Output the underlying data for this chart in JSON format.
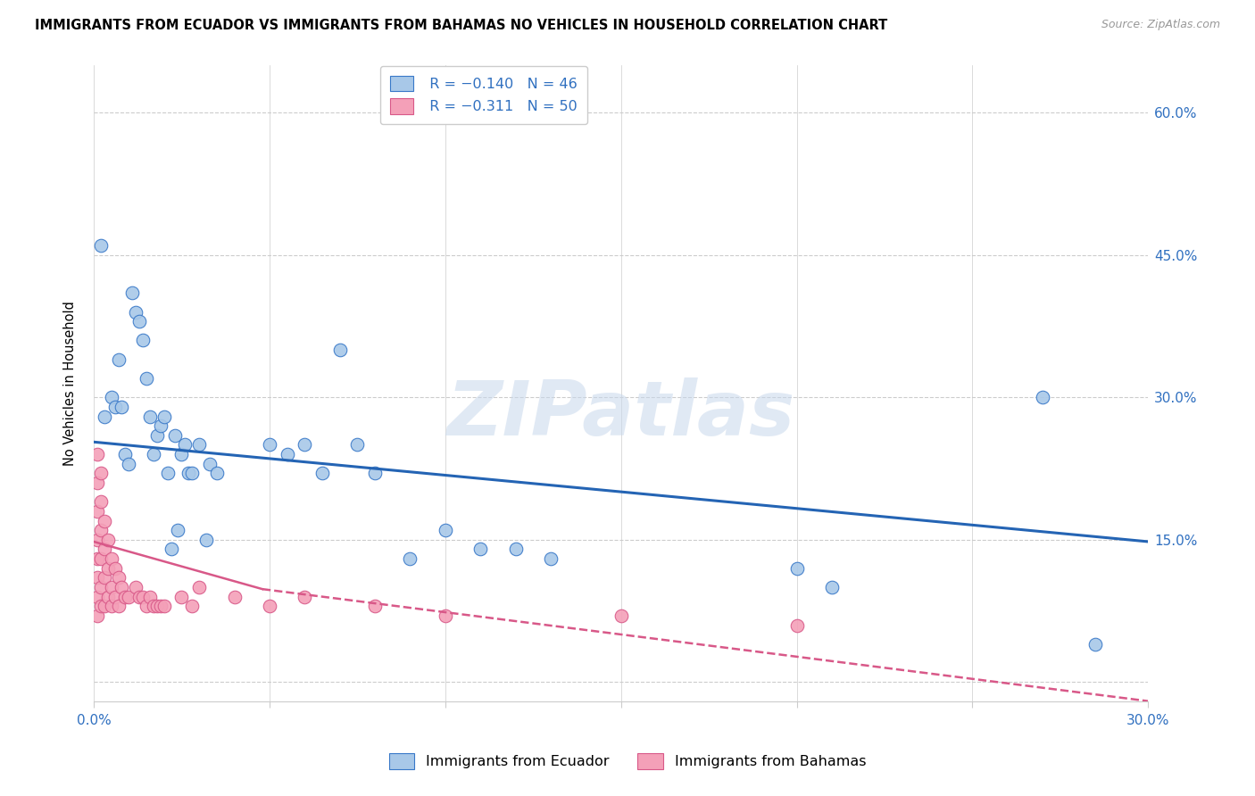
{
  "title": "IMMIGRANTS FROM ECUADOR VS IMMIGRANTS FROM BAHAMAS NO VEHICLES IN HOUSEHOLD CORRELATION CHART",
  "source": "Source: ZipAtlas.com",
  "ylabel": "No Vehicles in Household",
  "yticks": [
    0.0,
    0.15,
    0.3,
    0.45,
    0.6
  ],
  "ytick_labels": [
    "",
    "15.0%",
    "30.0%",
    "45.0%",
    "60.0%"
  ],
  "xticks": [
    0.0,
    0.05,
    0.1,
    0.15,
    0.2,
    0.25,
    0.3
  ],
  "xtick_labels": [
    "0.0%",
    "",
    "",
    "",
    "",
    "",
    "30.0%"
  ],
  "xlim": [
    0.0,
    0.3
  ],
  "ylim": [
    -0.02,
    0.65
  ],
  "watermark": "ZIPatlas",
  "legend_r1": "R = −0.140",
  "legend_n1": "N = 46",
  "legend_r2": "R = −0.311",
  "legend_n2": "N = 50",
  "ecuador_color": "#a8c8e8",
  "bahamas_color": "#f4a0b8",
  "ecuador_edge_color": "#3878c8",
  "bahamas_edge_color": "#d85888",
  "ecuador_line_color": "#2464b4",
  "bahamas_line_color": "#d85888",
  "axis_label_color": "#3070c0",
  "grid_color": "#cccccc",
  "ecuador_x": [
    0.002,
    0.003,
    0.005,
    0.006,
    0.007,
    0.008,
    0.009,
    0.01,
    0.011,
    0.012,
    0.013,
    0.014,
    0.015,
    0.016,
    0.017,
    0.018,
    0.019,
    0.02,
    0.021,
    0.022,
    0.023,
    0.024,
    0.025,
    0.026,
    0.027,
    0.028,
    0.03,
    0.032,
    0.033,
    0.035,
    0.05,
    0.055,
    0.06,
    0.065,
    0.07,
    0.075,
    0.08,
    0.09,
    0.1,
    0.11,
    0.12,
    0.13,
    0.2,
    0.21,
    0.27,
    0.285
  ],
  "ecuador_y": [
    0.46,
    0.28,
    0.3,
    0.29,
    0.34,
    0.29,
    0.24,
    0.23,
    0.41,
    0.39,
    0.38,
    0.36,
    0.32,
    0.28,
    0.24,
    0.26,
    0.27,
    0.28,
    0.22,
    0.14,
    0.26,
    0.16,
    0.24,
    0.25,
    0.22,
    0.22,
    0.25,
    0.15,
    0.23,
    0.22,
    0.25,
    0.24,
    0.25,
    0.22,
    0.35,
    0.25,
    0.22,
    0.13,
    0.16,
    0.14,
    0.14,
    0.13,
    0.12,
    0.1,
    0.3,
    0.04
  ],
  "bahamas_x": [
    0.001,
    0.001,
    0.001,
    0.001,
    0.001,
    0.001,
    0.001,
    0.001,
    0.002,
    0.002,
    0.002,
    0.002,
    0.002,
    0.002,
    0.003,
    0.003,
    0.003,
    0.003,
    0.004,
    0.004,
    0.004,
    0.005,
    0.005,
    0.005,
    0.006,
    0.006,
    0.007,
    0.007,
    0.008,
    0.009,
    0.01,
    0.012,
    0.013,
    0.014,
    0.015,
    0.016,
    0.017,
    0.018,
    0.019,
    0.02,
    0.025,
    0.028,
    0.03,
    0.04,
    0.05,
    0.06,
    0.08,
    0.1,
    0.15,
    0.2
  ],
  "bahamas_y": [
    0.24,
    0.21,
    0.18,
    0.15,
    0.13,
    0.11,
    0.09,
    0.07,
    0.22,
    0.19,
    0.16,
    0.13,
    0.1,
    0.08,
    0.17,
    0.14,
    0.11,
    0.08,
    0.15,
    0.12,
    0.09,
    0.13,
    0.1,
    0.08,
    0.12,
    0.09,
    0.11,
    0.08,
    0.1,
    0.09,
    0.09,
    0.1,
    0.09,
    0.09,
    0.08,
    0.09,
    0.08,
    0.08,
    0.08,
    0.08,
    0.09,
    0.08,
    0.1,
    0.09,
    0.08,
    0.09,
    0.08,
    0.07,
    0.07,
    0.06
  ],
  "eq_trend_x0": 0.0,
  "eq_trend_y0": 0.253,
  "eq_trend_x1": 0.3,
  "eq_trend_y1": 0.148,
  "bh_trend_solid_x0": 0.0,
  "bh_trend_solid_y0": 0.148,
  "bh_trend_solid_x1": 0.048,
  "bh_trend_solid_y1": 0.098,
  "bh_trend_dash_x0": 0.048,
  "bh_trend_dash_y0": 0.098,
  "bh_trend_dash_x1": 0.3,
  "bh_trend_dash_y1": -0.02
}
